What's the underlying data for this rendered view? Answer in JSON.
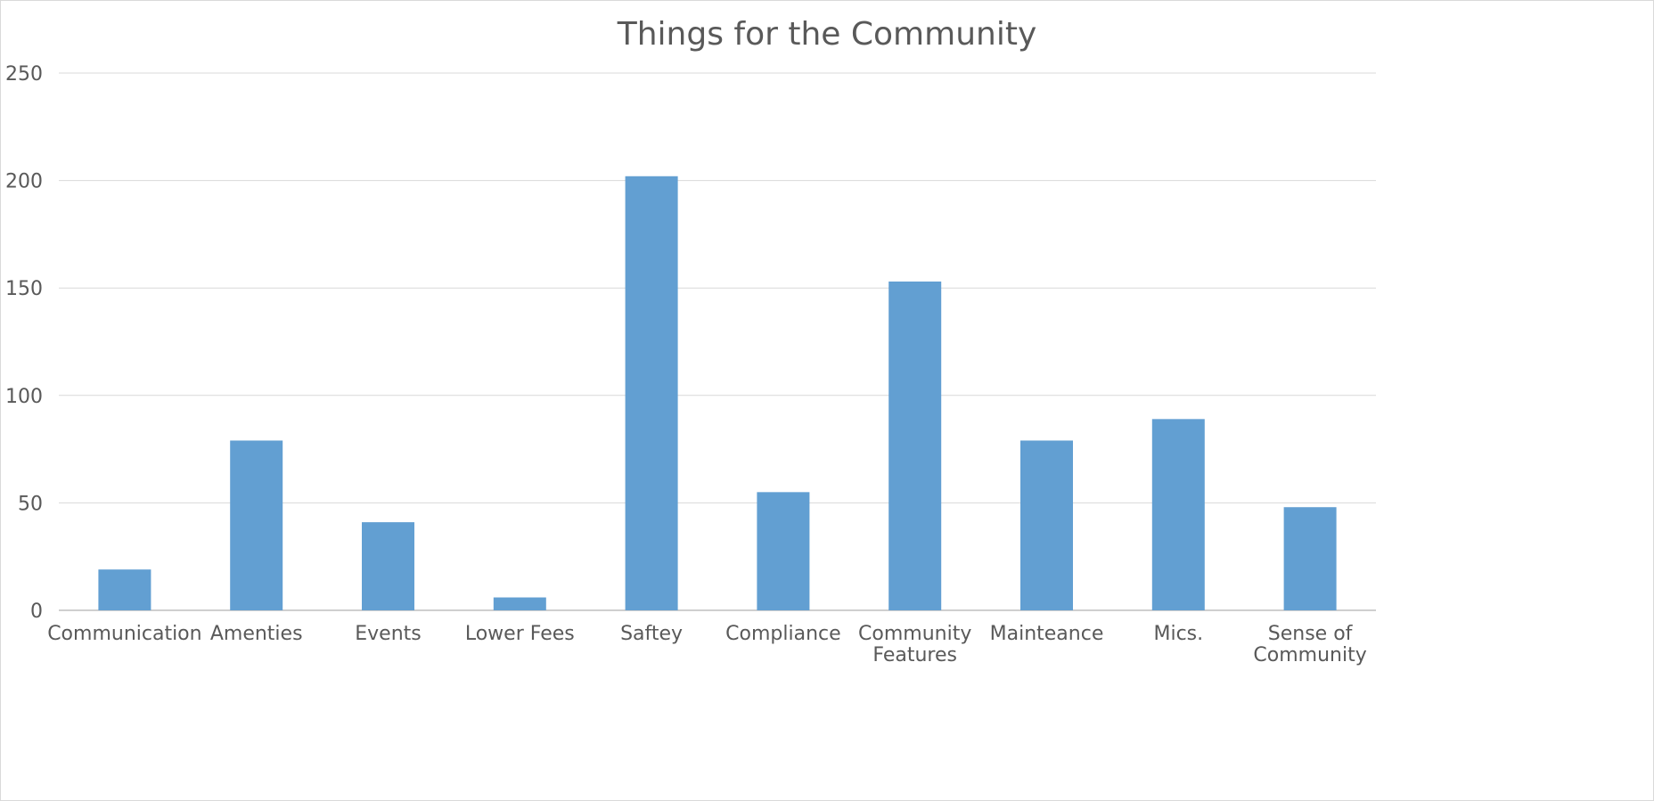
{
  "chart_data": {
    "type": "bar",
    "title": "Things for the Community",
    "xlabel": "",
    "ylabel": "",
    "ylim": [
      0,
      250
    ],
    "yticks": [
      0,
      50,
      100,
      150,
      200,
      250
    ],
    "grid": true,
    "legend": "none",
    "bar_color": "#629fd2",
    "categories": [
      [
        "Communication"
      ],
      [
        "Amenties"
      ],
      [
        "Events"
      ],
      [
        "Lower Fees"
      ],
      [
        "Saftey"
      ],
      [
        "Compliance"
      ],
      [
        "Community",
        "Features"
      ],
      [
        "Mainteance"
      ],
      [
        "Mics."
      ],
      [
        "Sense of",
        "Community"
      ]
    ],
    "values": [
      19,
      79,
      41,
      6,
      202,
      55,
      153,
      79,
      89,
      48
    ]
  }
}
